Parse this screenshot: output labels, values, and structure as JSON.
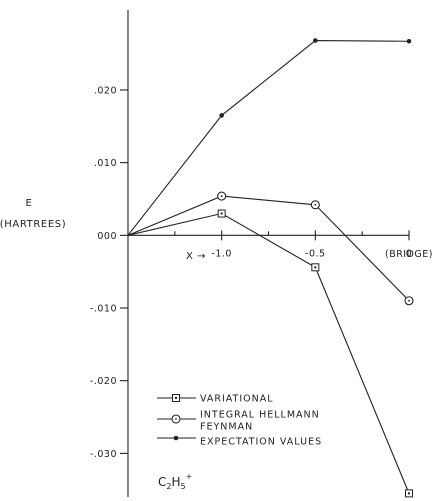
{
  "chart_data": {
    "type": "line",
    "title": "",
    "annotation": {
      "base": "C",
      "sub1": "2",
      "mid": "H",
      "sub2": "5",
      "sup": "+"
    },
    "ylabel": {
      "line1": "E",
      "line2": "(HARTREES)"
    },
    "xlabel": "X",
    "xlabel_arrow": "→",
    "x": [
      -1.5,
      -1.0,
      -0.5,
      0.0
    ],
    "xlim": [
      -1.5,
      0.0
    ],
    "ylim": [
      -0.036,
      0.031
    ],
    "x_ticks": [
      {
        "value": -1.0,
        "label": "-1.0"
      },
      {
        "value": -0.5,
        "label": "-0.5"
      },
      {
        "value": 0.0,
        "label": "0"
      }
    ],
    "x_minor_ticks": [
      -1.25,
      -0.75,
      -0.25
    ],
    "x_end_label": "(BRIDGE)",
    "y_ticks": [
      {
        "value": 0.02,
        "label": ".020"
      },
      {
        "value": 0.01,
        "label": ".010"
      },
      {
        "value": 0.0,
        "label": "000"
      },
      {
        "value": -0.01,
        "label": "-.010"
      },
      {
        "value": -0.02,
        "label": "-.020"
      },
      {
        "value": -0.03,
        "label": "-.030"
      }
    ],
    "series": [
      {
        "name": "VARIATIONAL",
        "marker": "square",
        "values": [
          0.0,
          0.003,
          -0.0044,
          -0.0355
        ]
      },
      {
        "name": "INTEGRAL HELLMANN FEYNMAN",
        "name_lines": [
          "INTEGRAL HELLMANN",
          "FEYNMAN"
        ],
        "marker": "circle",
        "values": [
          0.0,
          0.0054,
          0.0042,
          -0.009
        ]
      },
      {
        "name": "EXPECTATION VALUES",
        "marker": "dot",
        "values": [
          0.0,
          0.0165,
          0.0268,
          0.0267
        ]
      }
    ],
    "grid": false,
    "legend_position": "bottom-left"
  }
}
